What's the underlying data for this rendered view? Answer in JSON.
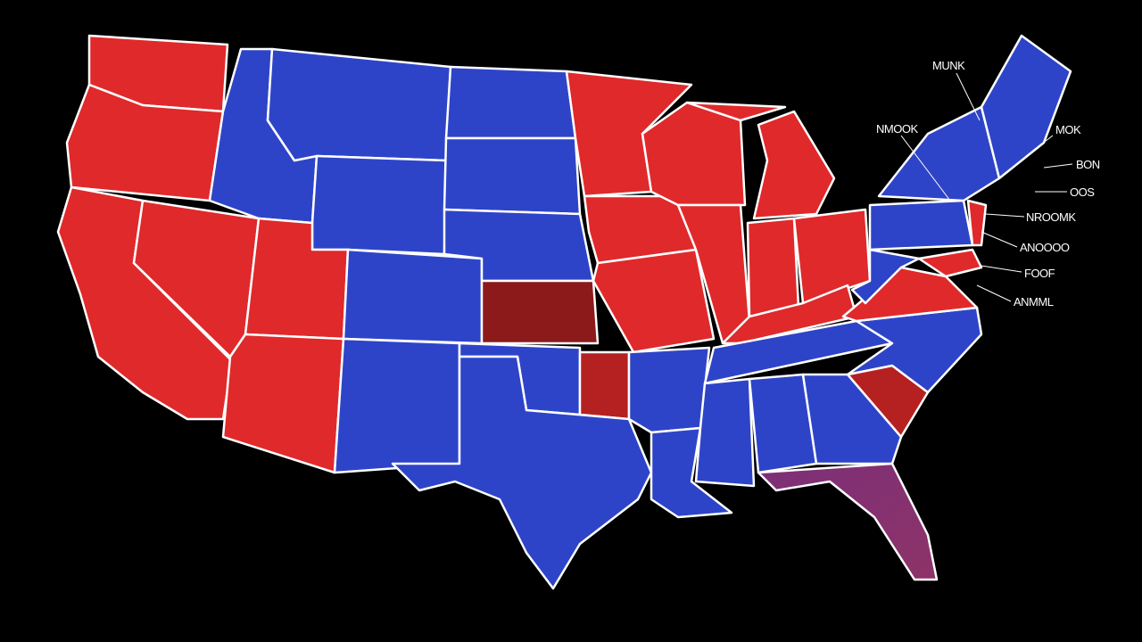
{
  "labels": [
    "MUNK",
    "NMOOK",
    "MOK",
    "BON",
    "OOS",
    "NROOMK",
    "ANOOOO",
    "FOOF",
    "ANMML"
  ]
}
